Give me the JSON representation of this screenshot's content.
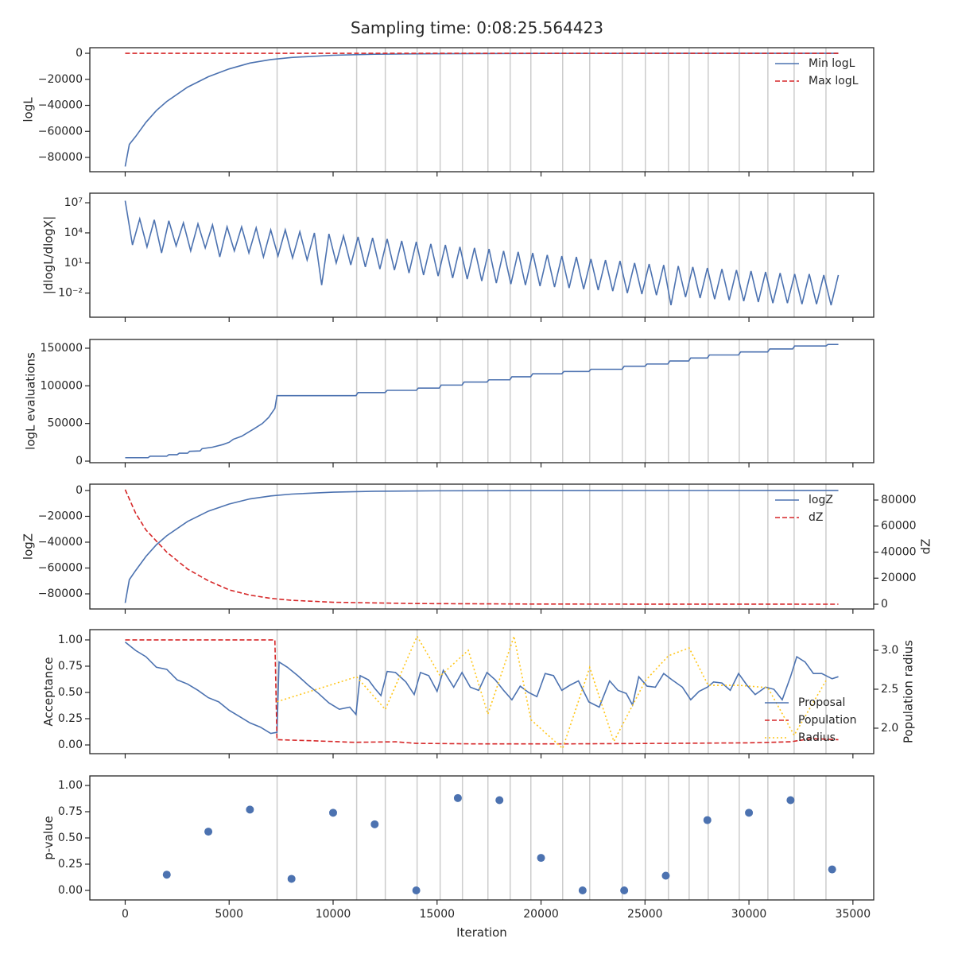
{
  "figure": {
    "title": "Sampling time: 0:08:25.564423",
    "xlabel": "Iteration",
    "xlim": [
      -1700,
      36000
    ],
    "xticks": [
      0,
      5000,
      10000,
      15000,
      20000,
      25000,
      30000,
      35000
    ],
    "vlines": [
      7307,
      11132,
      12510,
      14040,
      15149,
      16220,
      17445,
      18516,
      19511,
      21041,
      22342,
      23910,
      25019,
      26129,
      27123,
      28041,
      29533,
      30910,
      32173,
      33704
    ]
  },
  "chart_data": [
    {
      "type": "line",
      "ylabel": "logL",
      "ylim": [
        -91000,
        4300
      ],
      "yticks": [
        0,
        {
          "value": -20000,
          "label": "−20000"
        },
        {
          "value": -40000,
          "label": "−40000"
        },
        {
          "value": -60000,
          "label": "−60000"
        },
        {
          "value": -80000,
          "label": "−80000"
        }
      ],
      "legend": "upper right",
      "series": [
        {
          "name": "Min logL",
          "color": "#4c72b0",
          "dash": "solid",
          "x": [
            0,
            200,
            500,
            1000,
            1500,
            2000,
            3000,
            4000,
            5000,
            6000,
            7000,
            8000,
            10000,
            12000,
            15000,
            20000,
            25000,
            34300
          ],
          "values": [
            -87000,
            -70000,
            -64000,
            -53000,
            -44000,
            -37000,
            -26000,
            -18000,
            -12000,
            -7500,
            -4800,
            -3200,
            -1500,
            -700,
            -300,
            -100,
            -40,
            -10
          ]
        },
        {
          "name": "Max logL",
          "color": "#d62728",
          "dash": "dashed",
          "x": [
            0,
            34300
          ],
          "values": [
            0,
            0
          ]
        }
      ]
    },
    {
      "type": "line",
      "ylabel": "|dlogL/dlogX|",
      "yscale": "log",
      "ylim": [
        4e-05,
        90000000.0
      ],
      "yticks": [
        {
          "value": 10000000.0,
          "label": "10⁷"
        },
        {
          "value": 10000.0,
          "label": "10⁴"
        },
        {
          "value": 10,
          "label": "10¹"
        },
        {
          "value": 0.01,
          "label": "10⁻²"
        }
      ],
      "series": [
        {
          "name": "dlogL",
          "color": "#4c72b0",
          "dash": "solid",
          "x": [
            0,
            350,
            700,
            1050,
            1400,
            1750,
            2100,
            2450,
            2800,
            3150,
            3500,
            3850,
            4200,
            4550,
            4900,
            5250,
            5600,
            5950,
            6300,
            6650,
            7000,
            7350,
            7700,
            8050,
            8400,
            8750,
            9100,
            9450,
            9800,
            10150,
            10500,
            10850,
            11200,
            11550,
            11900,
            12250,
            12600,
            12950,
            13300,
            13650,
            14000,
            14350,
            14700,
            15050,
            15400,
            15750,
            16100,
            16450,
            16800,
            17150,
            17500,
            17850,
            18200,
            18550,
            18900,
            19250,
            19600,
            19950,
            20300,
            20650,
            21000,
            21350,
            21700,
            22050,
            22400,
            22750,
            23100,
            23450,
            23800,
            24150,
            24500,
            24850,
            25200,
            25550,
            25900,
            26250,
            26600,
            26950,
            27300,
            27650,
            28000,
            28350,
            28700,
            29050,
            29400,
            29750,
            30100,
            30450,
            30800,
            31150,
            31500,
            31850,
            32200,
            32550,
            32900,
            33250,
            33600,
            33950,
            34300
          ],
          "values": [
            16000000.0,
            630,
            250000.0,
            400,
            200000.0,
            100,
            160000.0,
            500,
            100000.0,
            160,
            80000.0,
            320,
            63000.0,
            40,
            40000.0,
            160,
            40000.0,
            100,
            32000.0,
            40,
            20000.0,
            50,
            20000.0,
            32,
            13000.0,
            20,
            10000.0,
            0.063,
            8000.0,
            10,
            5000.0,
            6.3,
            4000.0,
            4,
            3200.0,
            2.5,
            2500.0,
            2,
            1600.0,
            1,
            1300.0,
            0.63,
            800,
            0.5,
            630,
            0.32,
            400,
            0.25,
            320,
            0.16,
            250,
            0.1,
            160,
            0.08,
            130,
            0.063,
            100,
            0.05,
            63,
            0.04,
            50,
            0.032,
            40,
            0.025,
            25,
            0.02,
            20,
            0.016,
            16,
            0.01,
            10,
            0.008,
            8,
            0.0063,
            6.3,
            0.00063,
            5,
            0.004,
            4,
            0.0032,
            3.2,
            0.0025,
            2.5,
            0.002,
            2,
            0.0016,
            1.6,
            0.0013,
            1.3,
            0.001,
            1,
            0.001,
            0.8,
            0.0008,
            0.8,
            0.0008,
            0.63,
            0.00063,
            0.63
          ]
        }
      ]
    },
    {
      "type": "line",
      "ylabel": "logL evaluations",
      "ylim": [
        -2100,
        161600
      ],
      "yticks": [
        0,
        50000,
        100000,
        150000
      ],
      "series": [
        {
          "name": "evaluations",
          "color": "#4c72b0",
          "dash": "solid",
          "x": [
            0,
            1100,
            1200,
            2000,
            2100,
            2500,
            2600,
            3000,
            3100,
            3600,
            3700,
            4200,
            4700,
            5000,
            5200,
            5600,
            5900,
            6200,
            6600,
            6900,
            7200,
            7300,
            11100,
            11200,
            12500,
            12600,
            14000,
            14100,
            15100,
            15200,
            16200,
            16300,
            17400,
            17500,
            18500,
            18600,
            19500,
            19600,
            21000,
            21100,
            22300,
            22400,
            23900,
            24000,
            25000,
            25100,
            26100,
            26200,
            27100,
            27200,
            28000,
            28100,
            29500,
            29600,
            30900,
            31000,
            32100,
            32200,
            33700,
            33800,
            34300
          ],
          "values": [
            4500,
            4500,
            6500,
            6500,
            8500,
            8500,
            10500,
            10500,
            13000,
            13500,
            16500,
            18500,
            22000,
            25000,
            29000,
            33000,
            38000,
            43000,
            50000,
            58000,
            70000,
            87000,
            87000,
            91000,
            91000,
            94000,
            94000,
            97000,
            97000,
            101000,
            101000,
            105000,
            105000,
            108000,
            108000,
            112000,
            112000,
            116000,
            116000,
            119000,
            119000,
            122000,
            122000,
            126000,
            126000,
            129000,
            129000,
            133000,
            133000,
            137000,
            137000,
            141000,
            141000,
            145000,
            145000,
            149000,
            149000,
            153000,
            153000,
            155000,
            155000
          ]
        }
      ]
    },
    {
      "type": "line",
      "ylabel": "logZ",
      "y2label": "dZ",
      "ylim": [
        -91700,
        4900
      ],
      "y2lim": [
        -3660,
        92200
      ],
      "yticks": [
        0,
        {
          "value": -20000,
          "label": "−20000"
        },
        {
          "value": -40000,
          "label": "−40000"
        },
        {
          "value": -60000,
          "label": "−60000"
        },
        {
          "value": -80000,
          "label": "−80000"
        }
      ],
      "y2ticks": [
        0,
        20000,
        40000,
        60000,
        80000
      ],
      "legend": "upper right",
      "series": [
        {
          "name": "logZ",
          "color": "#4c72b0",
          "dash": "solid",
          "x": [
            0,
            200,
            500,
            1000,
            1500,
            2000,
            3000,
            4000,
            5000,
            6000,
            7000,
            8000,
            10000,
            12000,
            15000,
            20000,
            25000,
            34300
          ],
          "values": [
            -87000,
            -69000,
            -62000,
            -51000,
            -42000,
            -35000,
            -24000,
            -16000,
            -10500,
            -6500,
            -4200,
            -2800,
            -1300,
            -600,
            -250,
            -80,
            -30,
            -5
          ]
        },
        {
          "name": "dZ",
          "color": "#d62728",
          "dash": "dashed",
          "axis": "y2",
          "x": [
            0,
            500,
            1000,
            2000,
            3000,
            4000,
            5000,
            6000,
            7000,
            8000,
            10000,
            14000,
            20000,
            34300
          ],
          "values": [
            88000,
            70000,
            57000,
            40000,
            27000,
            18000,
            11000,
            7000,
            4500,
            3000,
            1500,
            500,
            100,
            0
          ]
        }
      ]
    },
    {
      "type": "line",
      "ylabel": "Acceptance",
      "y2label": "Population radius",
      "ylim": [
        -0.083,
        1.098
      ],
      "y2lim": [
        1.673,
        3.265
      ],
      "yticks": [
        {
          "value": 0,
          "label": "0.00"
        },
        {
          "value": 0.25,
          "label": "0.25"
        },
        {
          "value": 0.5,
          "label": "0.50"
        },
        {
          "value": 0.75,
          "label": "0.75"
        },
        {
          "value": 1,
          "label": "1.00"
        }
      ],
      "y2ticks": [
        {
          "value": 2,
          "label": "2.0"
        },
        {
          "value": 2.5,
          "label": "2.5"
        },
        {
          "value": 3,
          "label": "3.0"
        }
      ],
      "legend": "lower right",
      "series": [
        {
          "name": "Proposal",
          "color": "#4c72b0",
          "dash": "solid",
          "x": [
            0,
            500,
            1000,
            1500,
            2000,
            2500,
            3000,
            3500,
            4000,
            4500,
            5000,
            5500,
            6000,
            6500,
            7000,
            7300,
            7400,
            7800,
            8300,
            8800,
            9300,
            9800,
            10300,
            10800,
            11100,
            11300,
            11700,
            12000,
            12300,
            12600,
            13000,
            13500,
            13900,
            14200,
            14600,
            15000,
            15300,
            15800,
            16200,
            16600,
            17000,
            17400,
            17800,
            18200,
            18600,
            19000,
            19400,
            19800,
            20200,
            20600,
            21000,
            21400,
            21800,
            22300,
            22800,
            23300,
            23700,
            24100,
            24400,
            24700,
            25100,
            25500,
            25900,
            26300,
            26800,
            27200,
            27600,
            28000,
            28300,
            28700,
            29100,
            29500,
            29900,
            30300,
            30800,
            31200,
            31600,
            32000,
            32300,
            32700,
            33100,
            33500,
            34000,
            34300
          ],
          "values": [
            0.98,
            0.9,
            0.84,
            0.74,
            0.72,
            0.62,
            0.58,
            0.52,
            0.45,
            0.41,
            0.33,
            0.27,
            0.21,
            0.17,
            0.11,
            0.12,
            0.79,
            0.74,
            0.66,
            0.57,
            0.49,
            0.4,
            0.34,
            0.36,
            0.29,
            0.66,
            0.62,
            0.54,
            0.47,
            0.7,
            0.69,
            0.6,
            0.48,
            0.69,
            0.66,
            0.51,
            0.71,
            0.55,
            0.69,
            0.55,
            0.52,
            0.69,
            0.62,
            0.52,
            0.43,
            0.56,
            0.5,
            0.46,
            0.68,
            0.66,
            0.52,
            0.57,
            0.61,
            0.41,
            0.36,
            0.61,
            0.52,
            0.49,
            0.38,
            0.65,
            0.56,
            0.55,
            0.68,
            0.62,
            0.55,
            0.43,
            0.51,
            0.55,
            0.6,
            0.59,
            0.52,
            0.68,
            0.57,
            0.48,
            0.55,
            0.53,
            0.43,
            0.65,
            0.84,
            0.79,
            0.68,
            0.68,
            0.63,
            0.65
          ]
        },
        {
          "name": "Population",
          "color": "#d62728",
          "dash": "dashed",
          "x": [
            0,
            7200,
            7300,
            9000,
            11000,
            13000,
            14000,
            17000,
            21000,
            26000,
            30000,
            32000,
            33000,
            34300
          ],
          "values": [
            1.0,
            1.0,
            0.05,
            0.04,
            0.025,
            0.03,
            0.015,
            0.01,
            0.01,
            0.015,
            0.02,
            0.03,
            0.06,
            0.05
          ]
        },
        {
          "name": "Radius",
          "color": "#ffc61a",
          "dash": "dotted",
          "axis": "y2",
          "x": [
            7307,
            11132,
            12510,
            14040,
            15149,
            16500,
            17445,
            18700,
            19511,
            21041,
            22342,
            23500,
            25019,
            26129,
            27123,
            28041,
            29533,
            30910,
            32173,
            33704
          ],
          "values": [
            2.34,
            2.66,
            2.24,
            3.18,
            2.67,
            3.0,
            2.18,
            3.18,
            2.11,
            1.74,
            2.78,
            1.83,
            2.61,
            2.93,
            3.03,
            2.55,
            2.55,
            2.52,
            1.91,
            2.61
          ]
        }
      ]
    },
    {
      "type": "scatter",
      "ylabel": "p-value",
      "ylim": [
        -0.091,
        1.091
      ],
      "yticks": [
        {
          "value": 0,
          "label": "0.00"
        },
        {
          "value": 0.25,
          "label": "0.25"
        },
        {
          "value": 0.5,
          "label": "0.50"
        },
        {
          "value": 0.75,
          "label": "0.75"
        },
        {
          "value": 1,
          "label": "1.00"
        }
      ],
      "series": [
        {
          "name": "p-value",
          "color": "#4c72b0",
          "x": [
            2000,
            4000,
            6000,
            8000,
            10000,
            12000,
            14000,
            16000,
            18000,
            20000,
            22000,
            24000,
            26000,
            28000,
            30000,
            32000,
            34000
          ],
          "values": [
            0.15,
            0.56,
            0.77,
            0.11,
            0.74,
            0.63,
            0.0,
            0.88,
            0.86,
            0.31,
            0.0,
            0.0,
            0.14,
            0.67,
            0.74,
            0.86,
            0.2
          ]
        }
      ]
    }
  ]
}
